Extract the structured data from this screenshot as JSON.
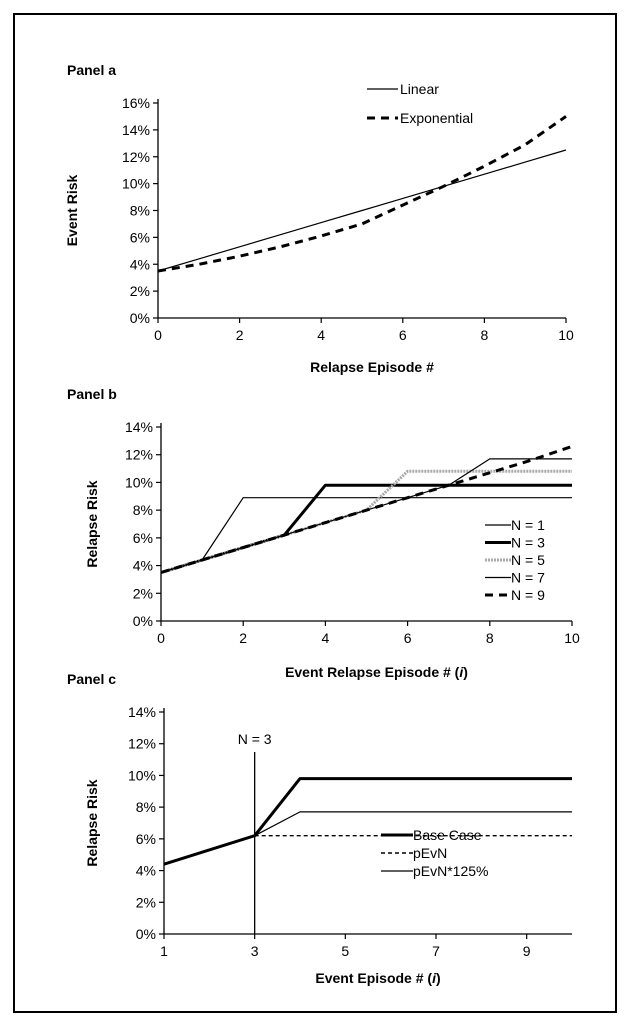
{
  "chart_data": [
    {
      "panel": "Panel a",
      "type": "line",
      "xlabel": "Relapse Episode #",
      "ylabel": "Event Risk",
      "xlim": [
        0,
        10
      ],
      "ylim": [
        0,
        16
      ],
      "xticks": [
        "0",
        "2",
        "4",
        "6",
        "8",
        "10"
      ],
      "yticks": [
        "0%",
        "2%",
        "4%",
        "6%",
        "8%",
        "10%",
        "12%",
        "14%",
        "16%"
      ],
      "legend_position": "top-right",
      "grid": false,
      "series": [
        {
          "name": "Linear",
          "style": "solid",
          "x": [
            0,
            1,
            2,
            3,
            4,
            5,
            6,
            7,
            8,
            9,
            10
          ],
          "y": [
            3.5,
            4.4,
            5.3,
            6.2,
            7.1,
            8.0,
            8.9,
            9.8,
            10.7,
            11.6,
            12.5
          ]
        },
        {
          "name": "Exponential",
          "style": "dashed",
          "x": [
            0,
            1,
            2,
            3,
            4,
            5,
            6,
            7,
            8,
            9,
            10
          ],
          "y": [
            3.5,
            4.0,
            4.6,
            5.3,
            6.1,
            7.0,
            8.4,
            9.8,
            11.3,
            12.9,
            15.0
          ]
        }
      ]
    },
    {
      "panel": "Panel b",
      "type": "line",
      "xlabel": "Event Relapse Episode # (",
      "xlabel_italic": "i",
      "xlabel_end": ")",
      "ylabel": "Relapse Risk",
      "xlim": [
        0,
        10
      ],
      "ylim": [
        0,
        14
      ],
      "xticks": [
        "0",
        "2",
        "4",
        "6",
        "8",
        "10"
      ],
      "yticks": [
        "0%",
        "2%",
        "4%",
        "6%",
        "8%",
        "10%",
        "12%",
        "14%"
      ],
      "legend_position": "bottom-right",
      "grid": false,
      "series": [
        {
          "name": "N = 1",
          "style": "thin",
          "x": [
            0,
            1,
            2,
            10
          ],
          "y": [
            3.5,
            4.4,
            8.9,
            8.9
          ]
        },
        {
          "name": "N = 3",
          "style": "thick",
          "x": [
            0,
            3,
            4,
            10
          ],
          "y": [
            3.5,
            6.2,
            9.8,
            9.8
          ]
        },
        {
          "name": "N = 5",
          "style": "gray",
          "x": [
            0,
            5,
            6,
            10
          ],
          "y": [
            3.5,
            8.0,
            10.8,
            10.8
          ]
        },
        {
          "name": "N = 7",
          "style": "thin",
          "x": [
            0,
            7,
            8,
            10
          ],
          "y": [
            3.5,
            9.8,
            11.7,
            11.7
          ]
        },
        {
          "name": "N = 9",
          "style": "dashed",
          "x": [
            0,
            9,
            10
          ],
          "y": [
            3.5,
            11.6,
            12.6
          ]
        }
      ]
    },
    {
      "panel": "Panel c",
      "type": "line",
      "xlabel": "Event Episode # (",
      "xlabel_italic": "i",
      "xlabel_end": ")",
      "ylabel": "Relapse Risk",
      "xlim": [
        1,
        10
      ],
      "ylim": [
        0,
        14
      ],
      "xticks": [
        "1",
        "3",
        "5",
        "7",
        "9"
      ],
      "yticks": [
        "0%",
        "2%",
        "4%",
        "6%",
        "8%",
        "10%",
        "12%",
        "14%"
      ],
      "legend_position": "bottom-right",
      "grid": false,
      "annotation": {
        "text": "N = 3",
        "x": 3
      },
      "series": [
        {
          "name": "Base Case",
          "style": "thick",
          "x": [
            1,
            3,
            4,
            10
          ],
          "y": [
            4.4,
            6.2,
            9.8,
            9.8
          ]
        },
        {
          "name": "pEvN",
          "style": "dotted",
          "x": [
            3,
            10
          ],
          "y": [
            6.2,
            6.2
          ]
        },
        {
          "name": "pEvN*125%",
          "style": "thin",
          "x": [
            3,
            4,
            10
          ],
          "y": [
            6.2,
            7.7,
            7.7
          ]
        }
      ]
    }
  ]
}
